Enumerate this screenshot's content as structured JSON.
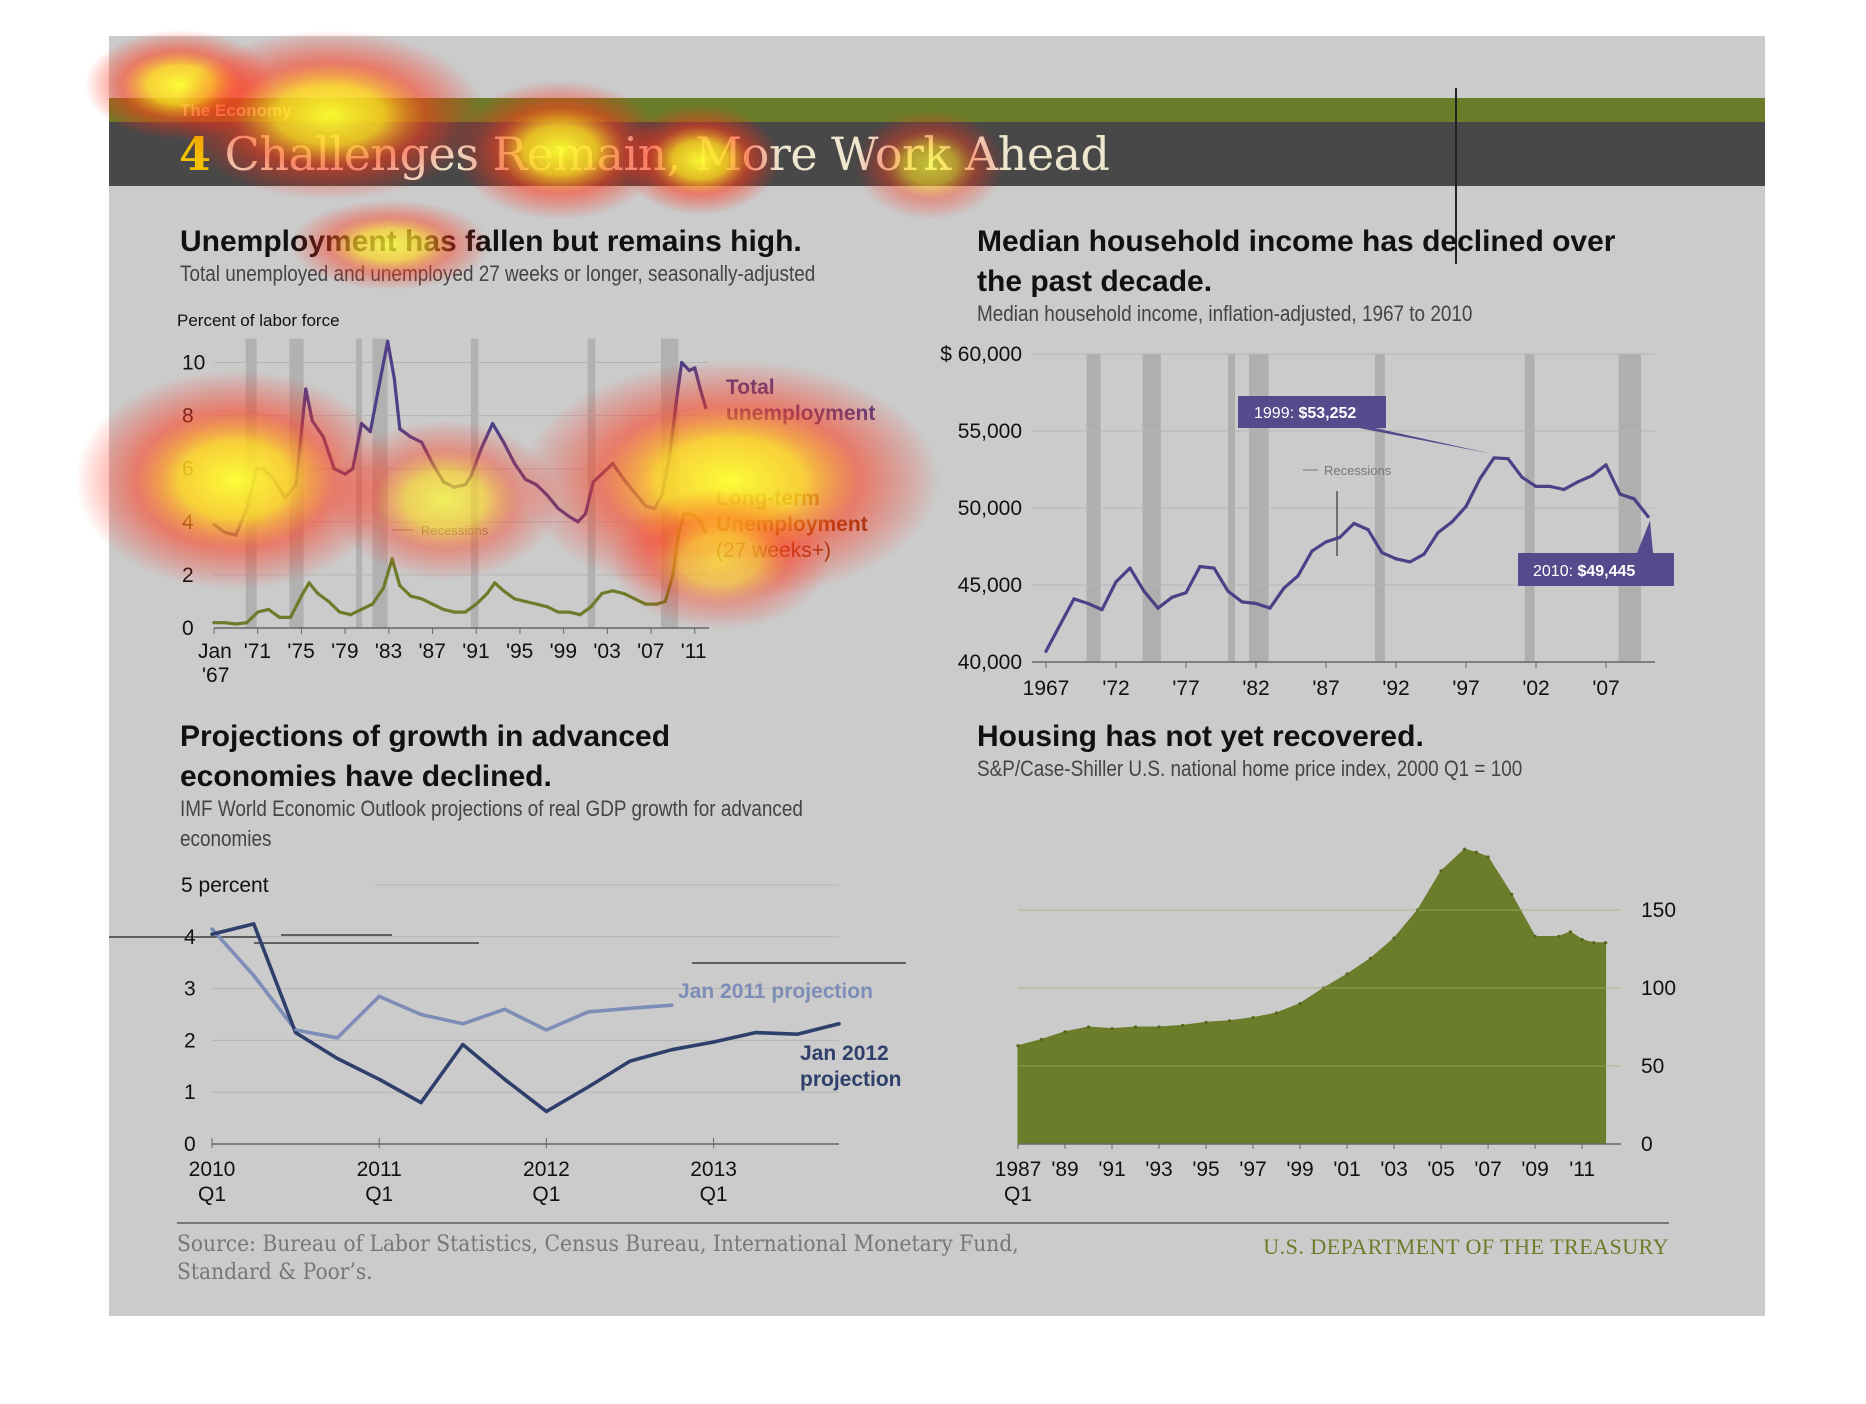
{
  "header": {
    "section_label": "The Economy",
    "title_number": "4",
    "title_text": " Challenges Remain, More Work Ahead"
  },
  "colors": {
    "olive": "#6b7c2a",
    "purple": "#4e3f87",
    "navy": "#2f3f6b",
    "light_blue": "#7d8db7",
    "recession_gray": "#a8a8a8",
    "title_bar": "#484848",
    "background": "#cbcbcb"
  },
  "panels": {
    "unemployment": {
      "title": "Unemployment has fallen but remains high.",
      "subtitle": "Total unemployed and unemployed 27 weeks or longer, seasonally-adjusted"
    },
    "income": {
      "title_line1": "Median household income has declined over",
      "title_line2": "the past decade.",
      "subtitle": "Median household income, inflation-adjusted, 1967 to 2010"
    },
    "gdp": {
      "title_line1": "Projections of growth in advanced",
      "title_line2": "economies have declined.",
      "subtitle_line1": "IMF World Economic Outlook  projections of real GDP growth for advanced",
      "subtitle_line2": "economies"
    },
    "housing": {
      "title": "Housing has not yet recovered.",
      "subtitle": "S&P/Case-Shiller U.S. national home price index, 2000 Q1 = 100"
    }
  },
  "chart_data": [
    {
      "id": "unemployment",
      "type": "line",
      "ylabel": "Percent of labor force",
      "ylim": [
        0,
        11
      ],
      "yticks": [
        0,
        2,
        4,
        6,
        8,
        10
      ],
      "x_tick_labels": [
        "Jan '67",
        "'71",
        "'75",
        "'79",
        "'83",
        "'87",
        "'91",
        "'95",
        "'99",
        "'03",
        "'07",
        "'11"
      ],
      "x_tick_values": [
        1967,
        1971,
        1975,
        1979,
        1983,
        1987,
        1991,
        1995,
        1999,
        2003,
        2007,
        2011
      ],
      "xlim": [
        1967,
        2012.3
      ],
      "recessions_label": "Recessions",
      "recessions": [
        [
          1969.9,
          1970.9
        ],
        [
          1973.9,
          1975.2
        ],
        [
          1980.0,
          1980.5
        ],
        [
          1981.5,
          1982.9
        ],
        [
          1990.5,
          1991.2
        ],
        [
          2001.2,
          2001.9
        ],
        [
          2007.9,
          2009.5
        ]
      ],
      "series": [
        {
          "name": "Total unemployment",
          "color": "#4e3f87",
          "x": [
            1967,
            1968,
            1969,
            1970,
            1970.9,
            1971.5,
            1972.5,
            1973.5,
            1974.5,
            1975.4,
            1976,
            1977,
            1978,
            1979,
            1979.7,
            1980.5,
            1981.3,
            1982,
            1982.9,
            1983.5,
            1984,
            1985,
            1986,
            1987,
            1988,
            1989,
            1990,
            1990.5,
            1991.5,
            1992.5,
            1993.5,
            1994.5,
            1995.5,
            1996.5,
            1997.5,
            1998.5,
            1999.5,
            2000.3,
            2001,
            2001.7,
            2002.5,
            2003.5,
            2004.5,
            2005.5,
            2006.5,
            2007.3,
            2008,
            2008.7,
            2009.3,
            2009.8,
            2010.5,
            2011,
            2011.5,
            2012
          ],
          "values": [
            3.9,
            3.6,
            3.5,
            4.5,
            6.0,
            6.0,
            5.6,
            4.9,
            5.4,
            9.0,
            7.8,
            7.2,
            6.0,
            5.8,
            6.0,
            7.7,
            7.4,
            8.9,
            10.8,
            9.4,
            7.5,
            7.2,
            7.0,
            6.2,
            5.5,
            5.3,
            5.4,
            5.7,
            6.8,
            7.7,
            7.0,
            6.2,
            5.6,
            5.4,
            5.0,
            4.5,
            4.2,
            4.0,
            4.3,
            5.5,
            5.8,
            6.2,
            5.6,
            5.1,
            4.6,
            4.5,
            5.0,
            6.5,
            8.5,
            10.0,
            9.7,
            9.8,
            9.0,
            8.3
          ]
        },
        {
          "name": "Long-term Unemployment (27 weeks+)",
          "color": "#6b7c2a",
          "x": [
            1967,
            1968,
            1969,
            1970,
            1971,
            1972,
            1973,
            1974,
            1975,
            1975.7,
            1976.5,
            1977.5,
            1978.5,
            1979.5,
            1980.5,
            1981.5,
            1982.5,
            1983.3,
            1984,
            1985,
            1986,
            1987,
            1988,
            1989,
            1990,
            1991,
            1992,
            1992.7,
            1993.5,
            1994.5,
            1995.5,
            1996.5,
            1997.5,
            1998.5,
            1999.5,
            2000.5,
            2001.5,
            2002.5,
            2003.5,
            2004.5,
            2005.5,
            2006.5,
            2007.5,
            2008.3,
            2009,
            2009.5,
            2010,
            2010.5,
            2011,
            2011.5,
            2012
          ],
          "values": [
            0.2,
            0.2,
            0.15,
            0.2,
            0.6,
            0.7,
            0.4,
            0.4,
            1.2,
            1.7,
            1.3,
            1.0,
            0.6,
            0.5,
            0.7,
            0.9,
            1.5,
            2.6,
            1.6,
            1.2,
            1.1,
            0.9,
            0.7,
            0.6,
            0.6,
            0.9,
            1.3,
            1.7,
            1.4,
            1.1,
            1.0,
            0.9,
            0.8,
            0.6,
            0.6,
            0.5,
            0.8,
            1.3,
            1.4,
            1.3,
            1.1,
            0.9,
            0.9,
            1.0,
            2.0,
            3.5,
            4.3,
            4.3,
            4.2,
            4.0,
            3.6
          ]
        }
      ],
      "labels": {
        "total_line1": "Total",
        "total_line2": "unemployment",
        "lt_line1": "Long-term",
        "lt_line2": "Unemployment",
        "lt_line3": "(27 weeks+)"
      }
    },
    {
      "id": "income",
      "type": "line",
      "ylim": [
        40000,
        60000
      ],
      "yticks": [
        40000,
        45000,
        50000,
        55000,
        60000
      ],
      "ytick_labels": [
        "40,000",
        "45,000",
        "50,000",
        "55,000",
        "$ 60,000"
      ],
      "x_tick_labels": [
        "1967",
        "'72",
        "'77",
        "'82",
        "'87",
        "'92",
        "'97",
        "'02",
        "'07"
      ],
      "x_tick_values": [
        1967,
        1972,
        1977,
        1982,
        1987,
        1992,
        1997,
        2002,
        2007
      ],
      "xlim": [
        1966,
        2010.5
      ],
      "recessions_label": "Recessions",
      "recessions": [
        [
          1969.9,
          1970.9
        ],
        [
          1973.9,
          1975.2
        ],
        [
          1980.0,
          1980.5
        ],
        [
          1981.5,
          1982.9
        ],
        [
          1990.5,
          1991.2
        ],
        [
          2001.2,
          2001.9
        ],
        [
          2007.9,
          2009.5
        ]
      ],
      "series": [
        {
          "name": "Median household income",
          "color": "#4e3f87",
          "x": [
            1967,
            1968,
            1969,
            1970,
            1971,
            1972,
            1973,
            1974,
            1975,
            1976,
            1977,
            1978,
            1979,
            1980,
            1981,
            1982,
            1983,
            1984,
            1985,
            1986,
            1987,
            1988,
            1989,
            1990,
            1991,
            1992,
            1993,
            1994,
            1995,
            1996,
            1997,
            1998,
            1999,
            2000,
            2001,
            2002,
            2003,
            2004,
            2005,
            2006,
            2007,
            2008,
            2009,
            2010
          ],
          "values": [
            40700,
            42400,
            44100,
            43800,
            43400,
            45200,
            46100,
            44600,
            43500,
            44200,
            44500,
            46200,
            46100,
            44600,
            43900,
            43800,
            43500,
            44800,
            45600,
            47200,
            47800,
            48100,
            49000,
            48600,
            47100,
            46700,
            46500,
            47000,
            48400,
            49100,
            50100,
            51900,
            53252,
            53200,
            52000,
            51400,
            51400,
            51200,
            51700,
            52100,
            52800,
            50900,
            50600,
            49445
          ]
        }
      ],
      "callouts": {
        "peak_year": "1999: ",
        "peak_value": "$53,252",
        "last_year": "2010: ",
        "last_value": "$49,445"
      }
    },
    {
      "id": "gdp",
      "type": "line",
      "ylabel": "5 percent",
      "ylim": [
        0,
        5
      ],
      "yticks": [
        0,
        1,
        2,
        3,
        4
      ],
      "x_tick_labels": [
        "2010 Q1",
        "2011 Q1",
        "2012 Q1",
        "2013 Q1"
      ],
      "x_tick_values": [
        0,
        4,
        8,
        12
      ],
      "xlim": [
        0,
        15
      ],
      "series": [
        {
          "name": "Jan 2011 projection",
          "color": "#7d8db7",
          "x": [
            0,
            1,
            2,
            3,
            4,
            5,
            6,
            7,
            8,
            9,
            10,
            11
          ],
          "values": [
            4.15,
            3.25,
            2.2,
            2.05,
            2.85,
            2.5,
            2.32,
            2.6,
            2.2,
            2.55,
            2.62,
            2.68
          ]
        },
        {
          "name": "Jan 2012 projection",
          "color": "#2f3f6b",
          "x": [
            0,
            1,
            2,
            3,
            4,
            5,
            6,
            7,
            8,
            9,
            10,
            11,
            12,
            13,
            14,
            15
          ],
          "values": [
            4.05,
            4.25,
            2.15,
            1.65,
            1.25,
            0.8,
            1.92,
            1.25,
            0.63,
            1.1,
            1.6,
            1.82,
            1.97,
            2.15,
            2.12,
            2.32
          ]
        }
      ],
      "labels": {
        "jan2011": "Jan 2011 projection",
        "jan2012_line1": "Jan 2012",
        "jan2012_line2": "projection"
      }
    },
    {
      "id": "housing",
      "type": "area",
      "ylim": [
        0,
        200
      ],
      "yticks": [
        0,
        50,
        100,
        150
      ],
      "x_tick_labels": [
        "1987 Q1",
        "'89",
        "'91",
        "'93",
        "'95",
        "'97",
        "'99",
        "'01",
        "'03",
        "'05",
        "'07",
        "'09",
        "'11"
      ],
      "x_tick_values": [
        1987,
        1989,
        1991,
        1993,
        1995,
        1997,
        1999,
        2001,
        2003,
        2005,
        2007,
        2009,
        2011
      ],
      "xlim": [
        1987,
        2012.4
      ],
      "series": [
        {
          "name": "Home price index",
          "color": "#6b7c2a",
          "x": [
            1987,
            1988,
            1989,
            1990,
            1991,
            1992,
            1993,
            1994,
            1995,
            1996,
            1997,
            1998,
            1999,
            2000,
            2001,
            2002,
            2003,
            2004,
            2005,
            2006,
            2006.5,
            2007,
            2008,
            2009,
            2010,
            2010.5,
            2011,
            2011.5,
            2012
          ],
          "values": [
            63,
            67,
            72,
            75,
            74,
            75,
            75,
            76,
            78,
            79,
            81,
            84,
            90,
            100,
            109,
            119,
            132,
            150,
            175,
            189,
            187,
            184,
            160,
            133,
            133,
            136,
            131,
            129,
            129
          ]
        }
      ]
    }
  ]
}
